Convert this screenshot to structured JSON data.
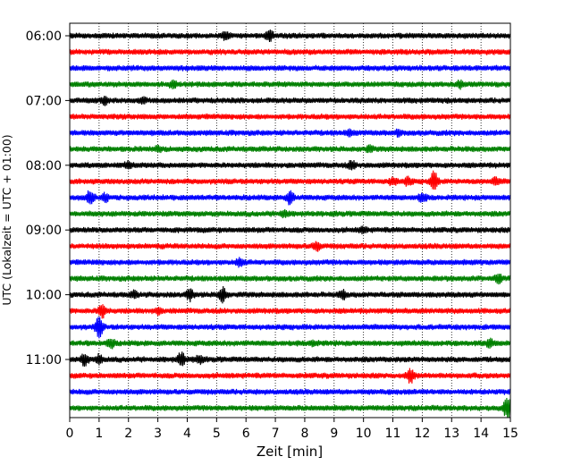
{
  "chart_data": {
    "type": "line",
    "title": "",
    "xlabel": "Zeit  [min]",
    "ylabel": "UTC (Lokalzeit = UTC + 01:00)",
    "xlim": [
      0,
      15
    ],
    "x_ticks": [
      0,
      1,
      2,
      3,
      4,
      5,
      6,
      7,
      8,
      9,
      10,
      11,
      12,
      13,
      14,
      15
    ],
    "y_tick_labels": [
      "06:00",
      "07:00",
      "08:00",
      "09:00",
      "10:00",
      "11:00"
    ],
    "grid": "vertical dotted",
    "trace_colors": [
      "#000000",
      "#ff0000",
      "#0000ff",
      "#008000"
    ],
    "series": [
      {
        "start": "06:00",
        "color": "#000000",
        "events": [
          [
            6.8,
            1.2
          ],
          [
            5.3,
            0.8
          ]
        ]
      },
      {
        "start": "06:15",
        "color": "#ff0000",
        "events": []
      },
      {
        "start": "06:30",
        "color": "#0000ff",
        "events": []
      },
      {
        "start": "06:45",
        "color": "#008000",
        "events": [
          [
            3.5,
            0.8
          ],
          [
            13.3,
            0.7
          ]
        ]
      },
      {
        "start": "07:00",
        "color": "#000000",
        "events": [
          [
            1.2,
            0.8
          ],
          [
            2.5,
            0.6
          ]
        ]
      },
      {
        "start": "07:15",
        "color": "#ff0000",
        "events": []
      },
      {
        "start": "07:30",
        "color": "#0000ff",
        "events": [
          [
            9.5,
            0.6
          ],
          [
            11.2,
            0.6
          ]
        ]
      },
      {
        "start": "07:45",
        "color": "#008000",
        "events": [
          [
            3.0,
            0.5
          ],
          [
            10.2,
            0.6
          ]
        ]
      },
      {
        "start": "08:00",
        "color": "#000000",
        "events": [
          [
            2.0,
            0.7
          ],
          [
            9.6,
            0.9
          ]
        ]
      },
      {
        "start": "08:15",
        "color": "#ff0000",
        "events": [
          [
            11.0,
            0.9
          ],
          [
            11.5,
            0.9
          ],
          [
            12.4,
            2.4
          ],
          [
            14.5,
            0.8
          ]
        ]
      },
      {
        "start": "08:30",
        "color": "#0000ff",
        "events": [
          [
            0.7,
            1.8
          ],
          [
            1.2,
            0.9
          ],
          [
            7.5,
            1.6
          ],
          [
            12.0,
            1.0
          ]
        ]
      },
      {
        "start": "08:45",
        "color": "#008000",
        "events": [
          [
            7.3,
            0.8
          ]
        ]
      },
      {
        "start": "09:00",
        "color": "#000000",
        "events": [
          [
            10.0,
            0.6
          ]
        ]
      },
      {
        "start": "09:15",
        "color": "#ff0000",
        "events": [
          [
            8.4,
            1.0
          ]
        ]
      },
      {
        "start": "09:30",
        "color": "#0000ff",
        "events": [
          [
            5.8,
            1.0
          ]
        ]
      },
      {
        "start": "09:45",
        "color": "#008000",
        "events": [
          [
            14.6,
            1.0
          ]
        ]
      },
      {
        "start": "10:00",
        "color": "#000000",
        "events": [
          [
            2.2,
            0.7
          ],
          [
            4.1,
            1.3
          ],
          [
            5.2,
            1.9
          ],
          [
            9.3,
            0.9
          ]
        ]
      },
      {
        "start": "10:15",
        "color": "#ff0000",
        "events": [
          [
            1.1,
            1.8
          ],
          [
            3.0,
            0.6
          ]
        ]
      },
      {
        "start": "10:30",
        "color": "#0000ff",
        "events": [
          [
            1.0,
            2.6
          ]
        ]
      },
      {
        "start": "10:45",
        "color": "#008000",
        "events": [
          [
            1.4,
            1.1
          ],
          [
            8.3,
            0.6
          ],
          [
            14.3,
            0.9
          ]
        ]
      },
      {
        "start": "11:00",
        "color": "#000000",
        "events": [
          [
            0.5,
            1.4
          ],
          [
            1.0,
            1.0
          ],
          [
            3.8,
            1.7
          ],
          [
            4.4,
            0.9
          ]
        ]
      },
      {
        "start": "11:15",
        "color": "#ff0000",
        "events": [
          [
            11.6,
            1.7
          ]
        ]
      },
      {
        "start": "11:30",
        "color": "#0000ff",
        "events": []
      },
      {
        "start": "11:45",
        "color": "#008000",
        "events": [
          [
            14.9,
            2.8
          ]
        ]
      }
    ]
  }
}
